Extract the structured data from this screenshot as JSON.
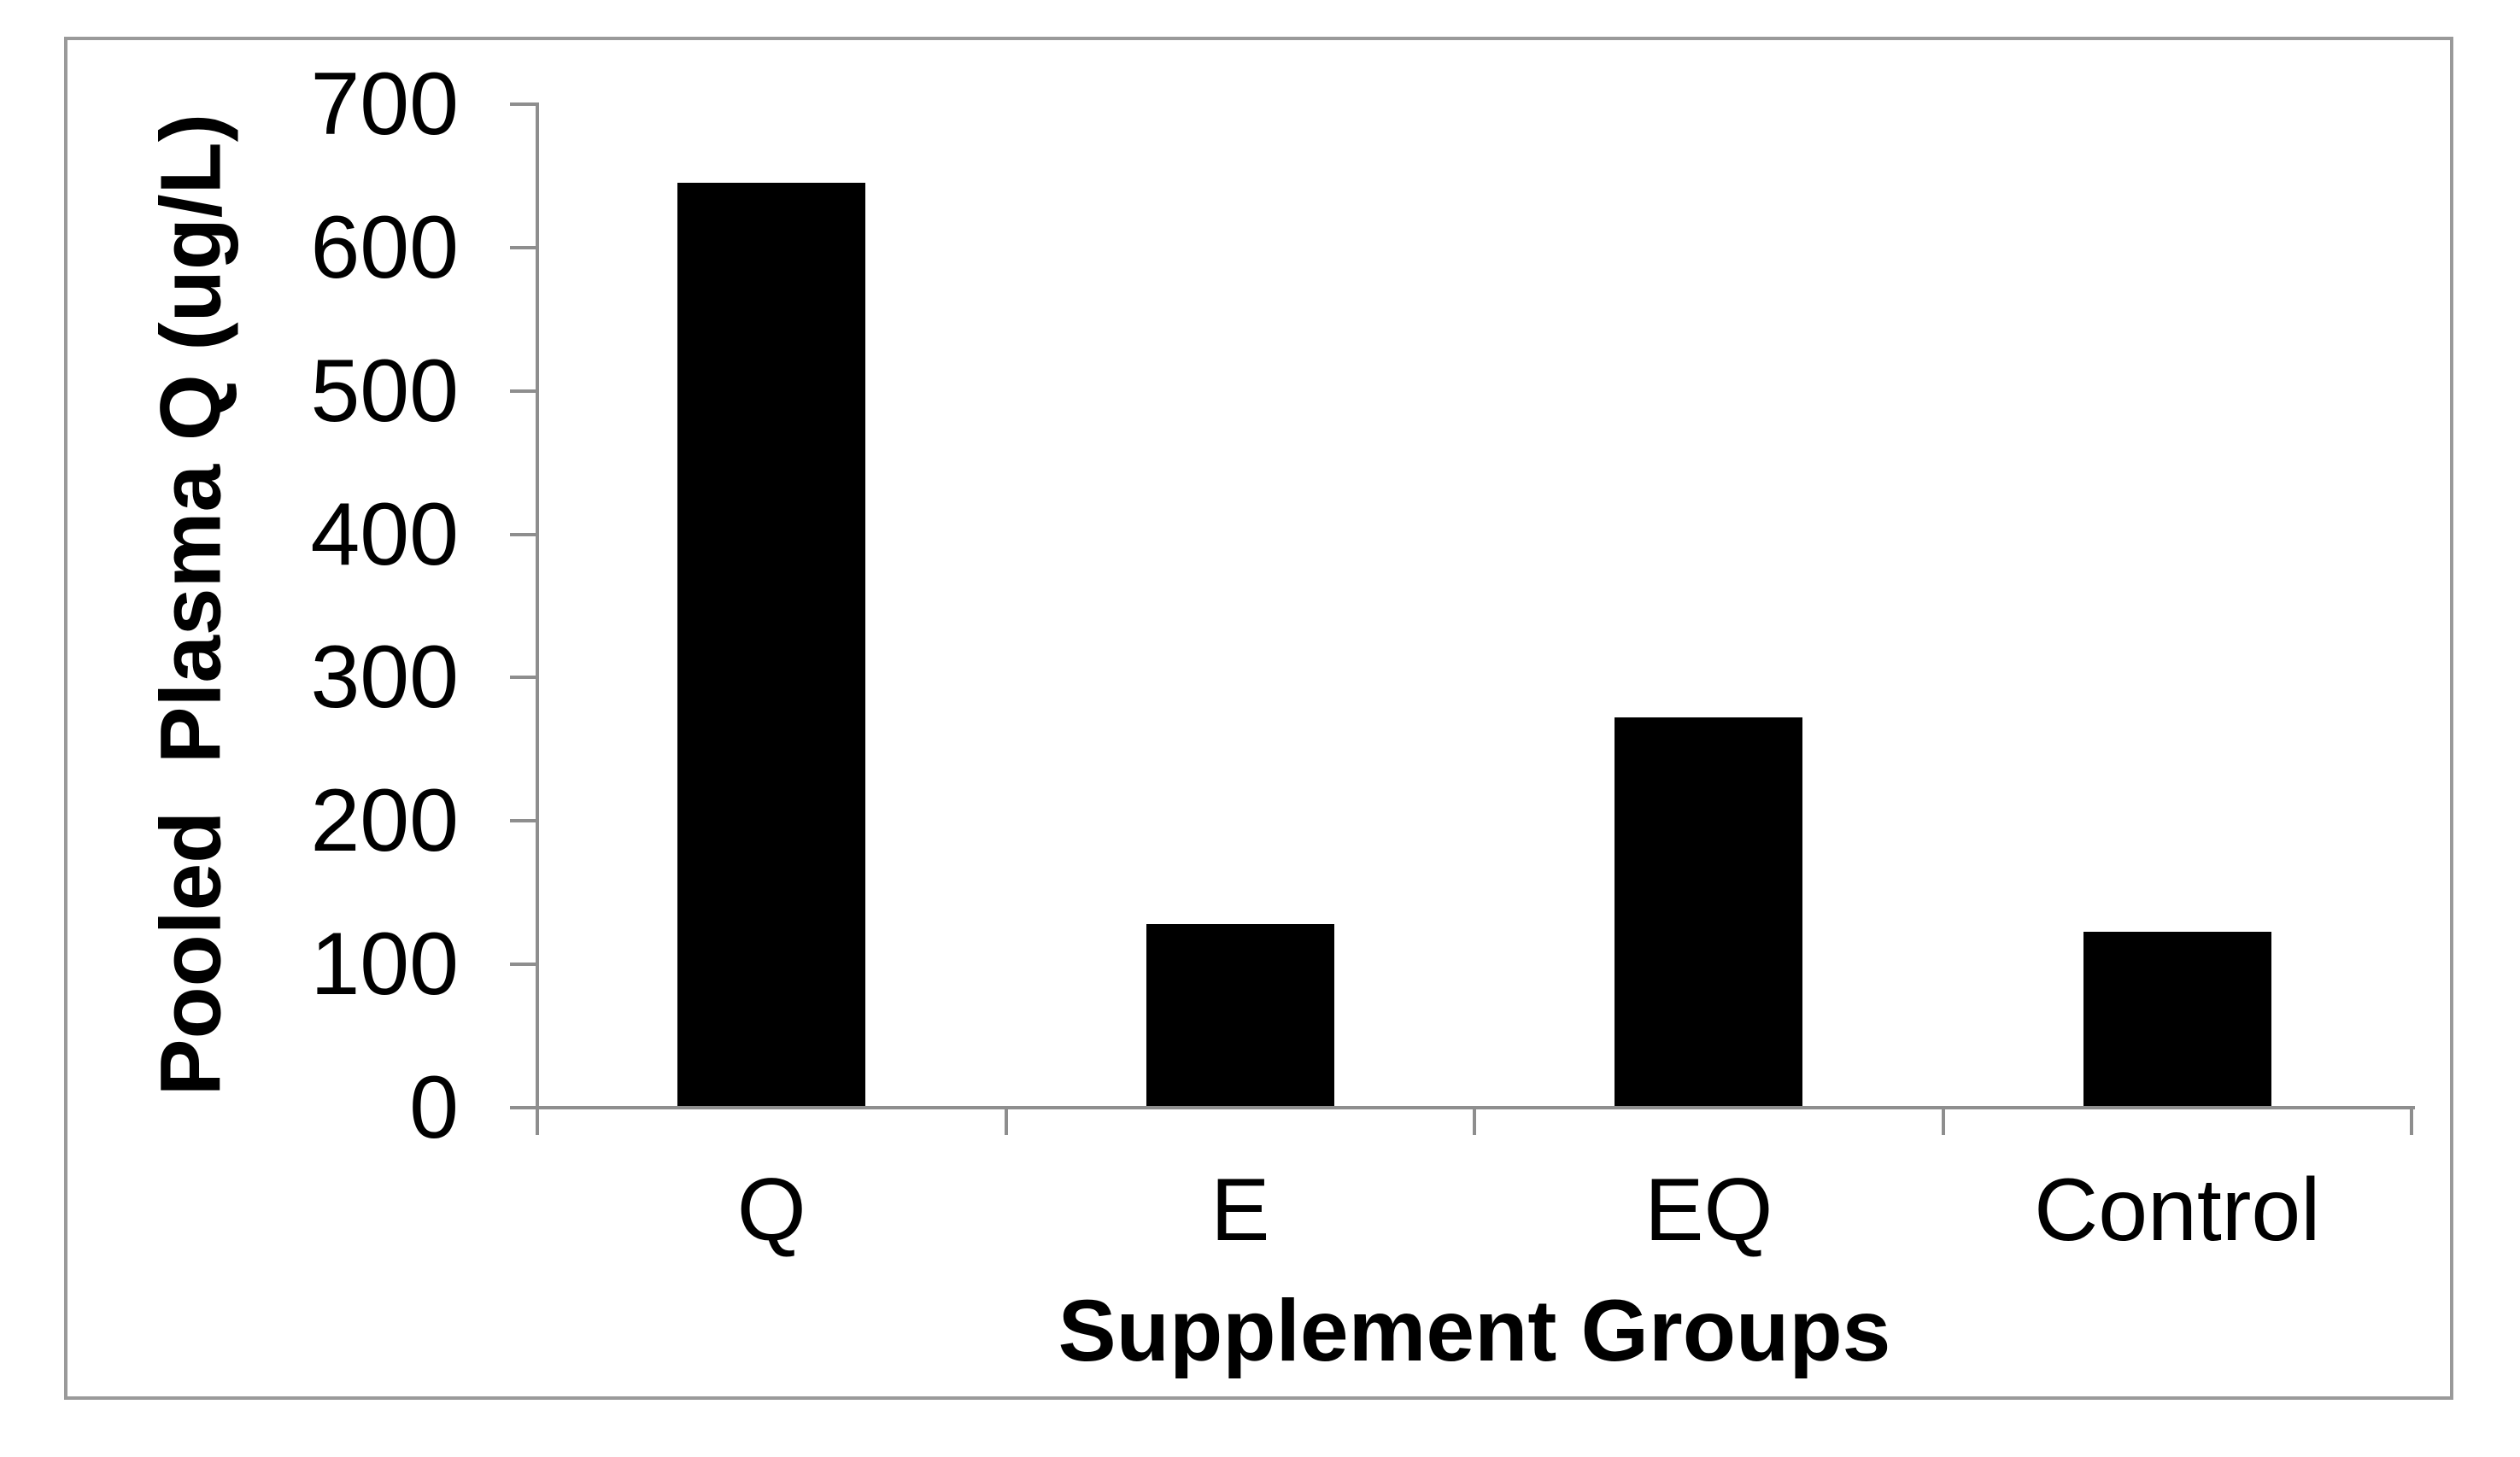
{
  "figure": {
    "background": "#ffffff",
    "border_color": "#9a9a9a",
    "axis_color": "#8e8e8e",
    "text_color": "#000000"
  },
  "chart_data": {
    "type": "bar",
    "title": "",
    "categories": [
      "Q",
      "E",
      "EQ",
      "Control"
    ],
    "values": [
      645,
      128,
      272,
      123
    ],
    "xlabel": "Supplement Groups",
    "ylabel": "Pooled  Plasma Q (ug/L)",
    "ylim": [
      0,
      700
    ],
    "yticks": [
      0,
      100,
      200,
      300,
      400,
      500,
      600,
      700
    ],
    "grid": "off",
    "legend": "none",
    "bar_color": "#000000",
    "bar_width_fraction": 0.4
  }
}
